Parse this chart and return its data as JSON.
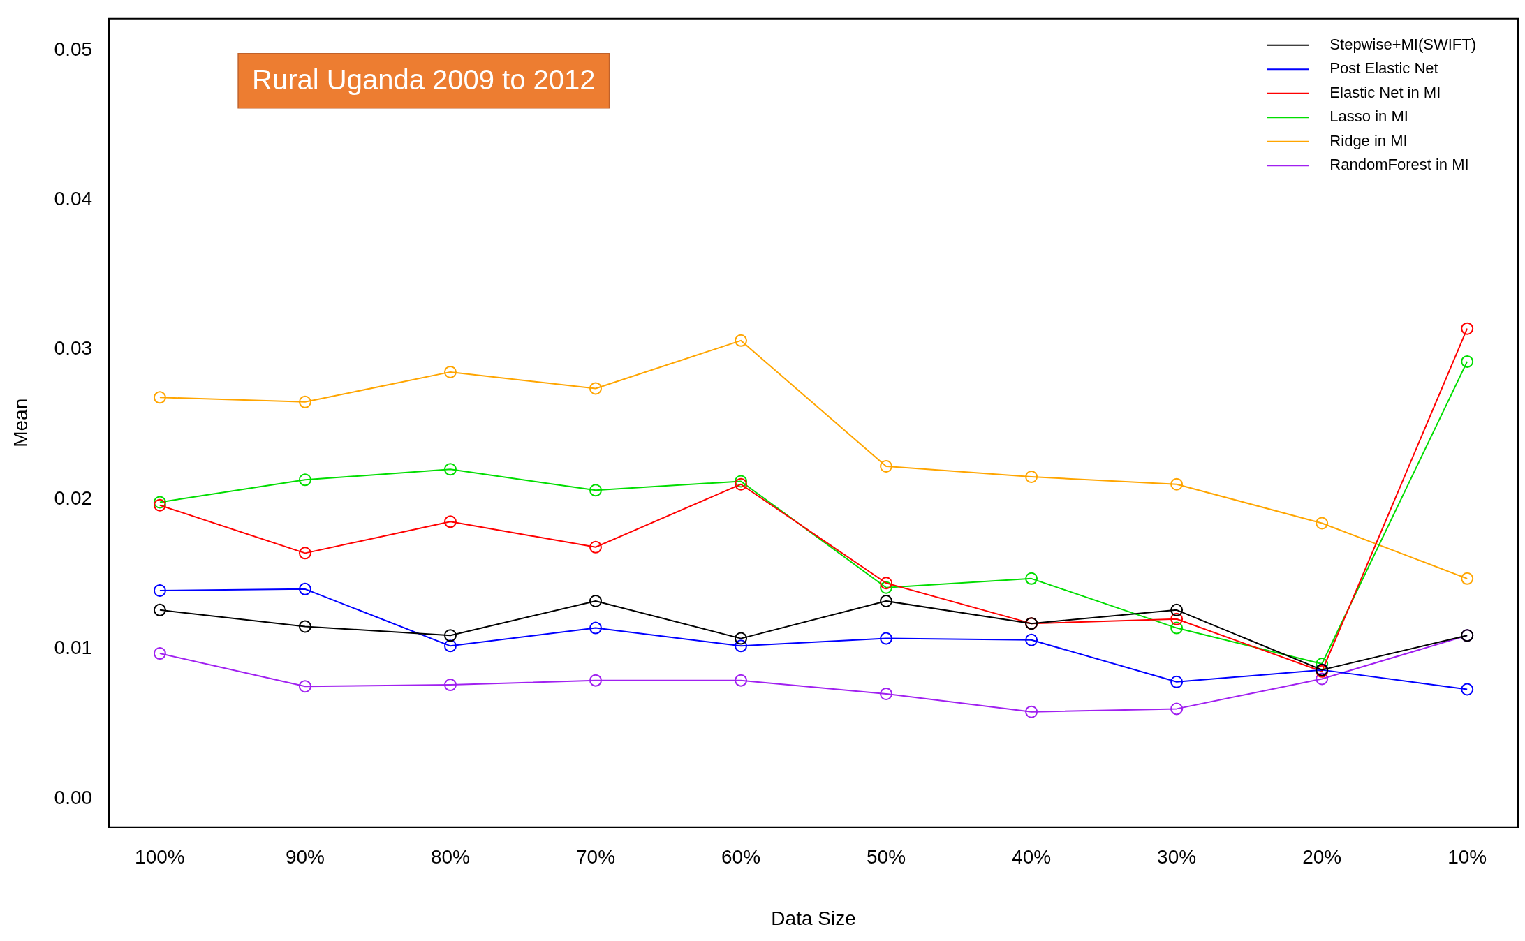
{
  "chart_data": {
    "type": "line",
    "title": "Rural Uganda 2009 to 2012",
    "xlabel": "Data Size",
    "ylabel": "Mean",
    "categories": [
      "100%",
      "90%",
      "80%",
      "70%",
      "60%",
      "50%",
      "40%",
      "30%",
      "20%",
      "10%"
    ],
    "series": [
      {
        "name": "Stepwise+MI(SWIFT)",
        "color": "#000000",
        "values": [
          0.0126,
          0.0115,
          0.0109,
          0.0132,
          0.0107,
          0.0132,
          0.0117,
          0.0126,
          0.0086,
          0.0109
        ]
      },
      {
        "name": "Post Elastic Net",
        "color": "#0000ff",
        "values": [
          0.0139,
          0.014,
          0.0102,
          0.0114,
          0.0102,
          0.0107,
          0.0106,
          0.0078,
          0.0086,
          0.0073
        ]
      },
      {
        "name": "Elastic Net in MI",
        "color": "#ff0000",
        "values": [
          0.0196,
          0.0164,
          0.0185,
          0.0168,
          0.021,
          0.0144,
          0.0117,
          0.012,
          0.0085,
          0.0314
        ]
      },
      {
        "name": "Lasso in MI",
        "color": "#00dd00",
        "values": [
          0.0198,
          0.0213,
          0.022,
          0.0206,
          0.0212,
          0.0141,
          0.0147,
          0.0114,
          0.009,
          0.0292
        ]
      },
      {
        "name": "Ridge in MI",
        "color": "#ffa500",
        "values": [
          0.0268,
          0.0265,
          0.0285,
          0.0274,
          0.0306,
          0.0222,
          0.0215,
          0.021,
          0.0184,
          0.0147
        ]
      },
      {
        "name": "RandomForest in MI",
        "color": "#a020f0",
        "values": [
          0.0097,
          0.0075,
          0.0076,
          0.0079,
          0.0079,
          0.007,
          0.0058,
          0.006,
          0.008,
          0.0109
        ]
      }
    ],
    "ylim": [
      -0.0019,
      0.0521
    ],
    "yticks": [
      {
        "value": 0,
        "label": "0.00"
      },
      {
        "value": 0.01,
        "label": "0.01"
      },
      {
        "value": 0.02,
        "label": "0.02"
      },
      {
        "value": 0.03,
        "label": "0.03"
      },
      {
        "value": 0.04,
        "label": "0.04"
      },
      {
        "value": 0.05,
        "label": "0.05"
      }
    ],
    "grid": false,
    "legend": "top right",
    "marker": "circle",
    "line_style": "solid"
  }
}
